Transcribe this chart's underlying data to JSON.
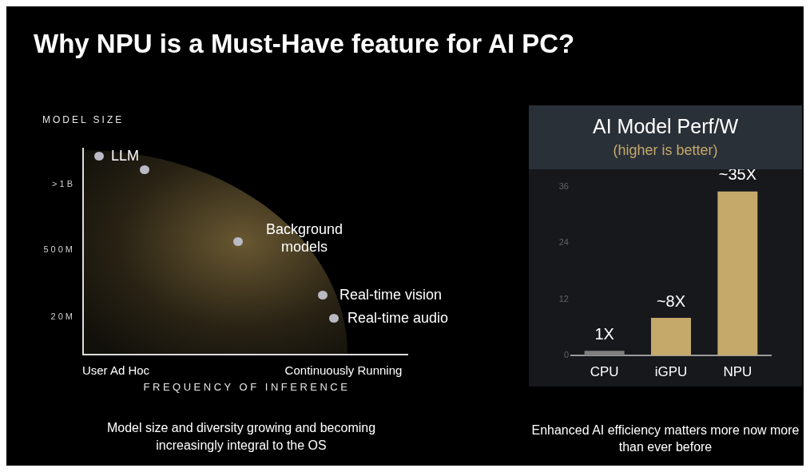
{
  "chart_data": [
    {
      "type": "other",
      "title": "Why NPU is a Must-Have feature for AI PC?",
      "xlabel": "FREQUENCY OF INFERENCE",
      "ylabel": "MODEL SIZE",
      "annotations": [
        "LLM",
        "Background models",
        "Real-time vision",
        "Real-time audio",
        ">1B",
        "500M",
        "20M",
        "User Ad Hoc",
        "Continuously Running",
        "Model size and diversity growing and becoming increasingly integral to the OS"
      ]
    },
    {
      "type": "bar",
      "title": "AI Model Perf/W",
      "subtitle": "(higher is better)",
      "categories": [
        "CPU",
        "iGPU",
        "NPU"
      ],
      "values": [
        1,
        8,
        35
      ],
      "colors": [
        "#7f7f7f",
        "#c4a96a",
        "#c4a96a"
      ],
      "ylim": [
        0,
        36
      ],
      "yticks": [
        0,
        12,
        24,
        36
      ],
      "value_labels": [
        "1X",
        "~8X",
        "~35X"
      ],
      "annotations": [
        "Enhanced AI efficiency matters more now more than ever before"
      ]
    }
  ]
}
